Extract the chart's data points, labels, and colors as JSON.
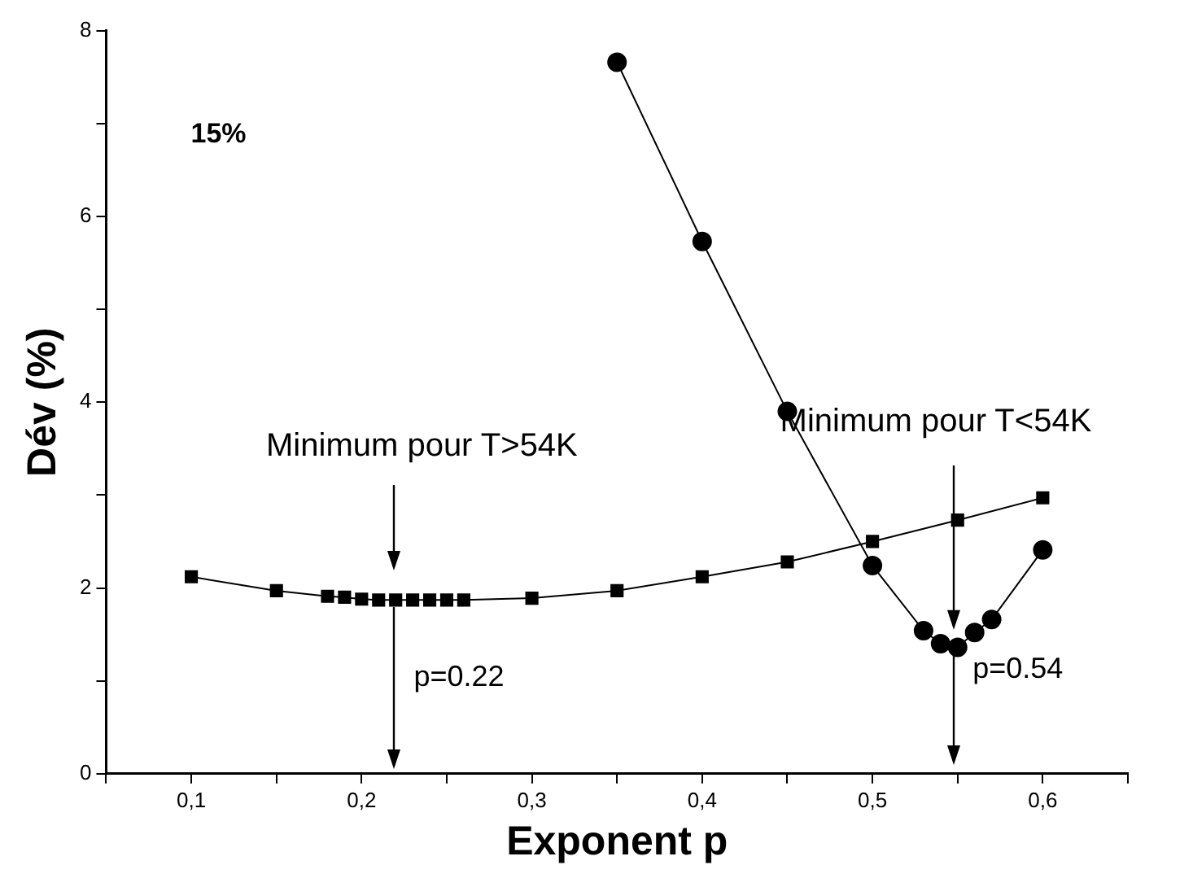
{
  "chart_data": {
    "type": "line",
    "xlabel": "Exponent p",
    "ylabel": "Dév (%)",
    "xlim": [
      0.05,
      0.65
    ],
    "ylim": [
      0,
      8
    ],
    "xticks": [
      {
        "value": 0.05,
        "label": null
      },
      {
        "value": 0.1,
        "label": "0,1"
      },
      {
        "value": 0.15,
        "label": null
      },
      {
        "value": 0.2,
        "label": "0,2"
      },
      {
        "value": 0.25,
        "label": null
      },
      {
        "value": 0.3,
        "label": "0,3"
      },
      {
        "value": 0.35,
        "label": null
      },
      {
        "value": 0.4,
        "label": "0,4"
      },
      {
        "value": 0.45,
        "label": null
      },
      {
        "value": 0.5,
        "label": "0,5"
      },
      {
        "value": 0.55,
        "label": null
      },
      {
        "value": 0.6,
        "label": "0,6"
      },
      {
        "value": 0.65,
        "label": null
      }
    ],
    "yticks": [
      0,
      {
        "value": 1,
        "label": null
      },
      2,
      {
        "value": 3,
        "label": null
      },
      4,
      {
        "value": 5,
        "label": null
      },
      6,
      {
        "value": 7,
        "label": null
      },
      8
    ],
    "series": [
      {
        "color": "#000000",
        "marker": "square",
        "x": [
          0.1,
          0.15,
          0.18,
          0.19,
          0.2,
          0.21,
          0.22,
          0.23,
          0.24,
          0.25,
          0.26,
          0.3,
          0.35,
          0.4,
          0.45,
          0.5,
          0.55,
          0.6
        ],
        "values": [
          2.12,
          1.97,
          1.91,
          1.9,
          1.88,
          1.87,
          1.87,
          1.87,
          1.87,
          1.87,
          1.87,
          1.89,
          1.97,
          2.12,
          2.28,
          2.5,
          2.73,
          2.97
        ]
      },
      {
        "color": "#000000",
        "marker": "circle",
        "x": [
          0.35,
          0.4,
          0.45,
          0.5,
          0.53,
          0.54,
          0.55,
          0.56,
          0.57,
          0.6
        ],
        "values": [
          7.66,
          5.73,
          3.9,
          2.24,
          1.54,
          1.4,
          1.36,
          1.52,
          1.66,
          2.41
        ]
      }
    ],
    "annotations": [
      "15%",
      "Minimum pour T>54K",
      "p=0.22",
      "Minimum pour T<54K",
      "p=0.54"
    ],
    "line_style": "solid",
    "legend": false,
    "grid": false
  }
}
